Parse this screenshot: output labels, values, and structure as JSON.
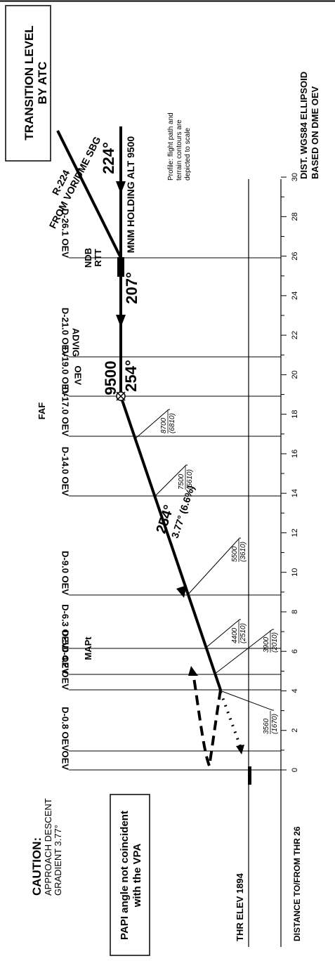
{
  "header": {
    "transition_level_line1": "TRANSITION LEVEL",
    "transition_level_line2": "BY ATC",
    "dist_note_line1": "DIST. WGS84 ELLIPSOID",
    "dist_note_line2": "BASED ON DME OEV",
    "profile_note_line1": "Profile: flight path and",
    "profile_note_line2": "terrain contours are",
    "profile_note_line3": "depicted to scale"
  },
  "track_labels": {
    "radial_line1": "R-224",
    "radial_line2": "FROM VOR/DME SBG",
    "holding_alt": "MNM HOLDING ALT 9500",
    "holding_course": "224°",
    "inbound_course": "207°",
    "faf_altitude": "9500",
    "faf_course": "254°",
    "final_course": "254°",
    "final_angle": "3.77° (6.6%)"
  },
  "fixes": [
    {
      "id": "ndb",
      "line1": "NDB",
      "line2": "RTT",
      "dist_label": "D-26.1 OEV"
    },
    {
      "id": "advig",
      "line1": "ADVIG",
      "line2": "",
      "dist_label": "D-21.0 OEV"
    },
    {
      "id": "faf",
      "line1": "FAF",
      "line2": "",
      "dist_label": "D-19.0 OEV",
      "sub": "OEV"
    },
    {
      "id": "d17",
      "dist_label": "D-17.0 OEV"
    },
    {
      "id": "d14",
      "dist_label": "D-14.0 OEV"
    },
    {
      "id": "d9",
      "dist_label": "D-9.0 OEV"
    },
    {
      "id": "mapt",
      "line1": "MAPt",
      "dist_label": "D-6.3 OEV"
    },
    {
      "id": "d5",
      "dist_label": "D-5.0 OEV"
    },
    {
      "id": "d42",
      "dist_label": "D-4.2 OEV"
    },
    {
      "id": "d08",
      "dist_label": "D-0.8 OEV"
    },
    {
      "id": "oev",
      "dist_label": "OEV"
    }
  ],
  "altitudes": [
    {
      "alt": "8700",
      "hgt": "(6810)"
    },
    {
      "alt": "7500",
      "hgt": "(5610)"
    },
    {
      "alt": "5500",
      "hgt": "(3610)"
    },
    {
      "alt": "4400",
      "hgt": "(2510)"
    },
    {
      "alt": "3900",
      "hgt": "(2010)"
    },
    {
      "alt": "3560",
      "hgt": "(1670)"
    }
  ],
  "scale": {
    "ticks": [
      "0",
      "2",
      "4",
      "6",
      "8",
      "10",
      "12",
      "14",
      "16",
      "18",
      "20",
      "22",
      "24",
      "26",
      "28",
      "30"
    ],
    "axis_label": "DISTANCE TO/FROM THR 26"
  },
  "threshold": {
    "label": "THR ELEV 1894"
  },
  "caution": {
    "title": "CAUTION:",
    "line1": "APPROACH DESCENT",
    "line2": "GRADIENT 3.77°"
  },
  "papi": {
    "line1": "PAPI angle not coincident",
    "line2": "with the VPA"
  }
}
